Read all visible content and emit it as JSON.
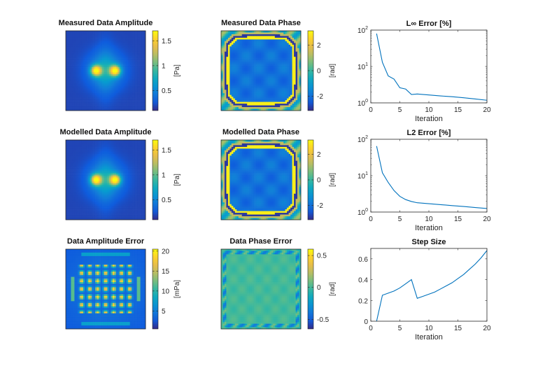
{
  "figure": {
    "background": "#ffffff"
  },
  "chart_data": [
    {
      "id": "p1",
      "type": "heatmap",
      "title": "Measured Data Amplitude",
      "pattern": "amplitude",
      "colorbar": {
        "label": "[Pa]",
        "ticks": [
          "0.5",
          "1",
          "1.5"
        ],
        "range": [
          0.1,
          1.7
        ]
      }
    },
    {
      "id": "p2",
      "type": "heatmap",
      "title": "Measured Data Phase",
      "pattern": "phase",
      "colorbar": {
        "label": "[rad]",
        "ticks": [
          "-2",
          "0",
          "2"
        ],
        "range": [
          -3.14,
          3.14
        ]
      }
    },
    {
      "id": "p3",
      "type": "line",
      "title": "L∞ Error [%]",
      "xlabel": "Iteration",
      "yscale": "log",
      "xlim": [
        0,
        20
      ],
      "ylim": [
        1,
        100
      ],
      "xticks": [
        "0",
        "5",
        "10",
        "15",
        "20"
      ],
      "yticks": [
        {
          "base": "10",
          "exp": "0"
        },
        {
          "base": "10",
          "exp": "1"
        },
        {
          "base": "10",
          "exp": "2"
        }
      ],
      "color": "#0072bd",
      "x": [
        1,
        2,
        3,
        4,
        5,
        6,
        7,
        8,
        10,
        12,
        14,
        16,
        18,
        20
      ],
      "y": [
        80,
        13,
        5.5,
        4.5,
        2.6,
        2.4,
        1.7,
        1.75,
        1.65,
        1.55,
        1.48,
        1.38,
        1.28,
        1.18
      ]
    },
    {
      "id": "p4",
      "type": "heatmap",
      "title": "Modelled Data Amplitude",
      "pattern": "amplitude",
      "colorbar": {
        "label": "[Pa]",
        "ticks": [
          "0.5",
          "1",
          "1.5"
        ],
        "range": [
          0.1,
          1.7
        ]
      }
    },
    {
      "id": "p5",
      "type": "heatmap",
      "title": "Modelled Data Phase",
      "pattern": "phase",
      "colorbar": {
        "label": "[rad]",
        "ticks": [
          "-2",
          "0",
          "2"
        ],
        "range": [
          -3.14,
          3.14
        ]
      }
    },
    {
      "id": "p6",
      "type": "line",
      "title": "L2 Error [%]",
      "xlabel": "Iteration",
      "yscale": "log",
      "xlim": [
        0,
        20
      ],
      "ylim": [
        1,
        100
      ],
      "xticks": [
        "0",
        "5",
        "10",
        "15",
        "20"
      ],
      "yticks": [
        {
          "base": "10",
          "exp": "0"
        },
        {
          "base": "10",
          "exp": "1"
        },
        {
          "base": "10",
          "exp": "2"
        }
      ],
      "color": "#0072bd",
      "x": [
        1,
        2,
        3,
        4,
        5,
        6,
        7,
        8,
        10,
        12,
        14,
        16,
        18,
        20
      ],
      "y": [
        65,
        12,
        6.5,
        3.9,
        2.7,
        2.2,
        1.95,
        1.8,
        1.7,
        1.6,
        1.5,
        1.42,
        1.33,
        1.25
      ]
    },
    {
      "id": "p7",
      "type": "heatmap",
      "title": "Data Amplitude Error",
      "pattern": "amp_error",
      "colorbar": {
        "label": "[mPa]",
        "ticks": [
          "5",
          "10",
          "15",
          "20"
        ],
        "range": [
          0.5,
          20.5
        ]
      }
    },
    {
      "id": "p8",
      "type": "heatmap",
      "title": "Data Phase Error",
      "pattern": "phase_error",
      "colorbar": {
        "label": "[rad]",
        "ticks": [
          "-0.5",
          "0",
          "0.5"
        ],
        "range": [
          -0.65,
          0.6
        ]
      }
    },
    {
      "id": "p9",
      "type": "line",
      "title": "Step Size",
      "xlabel": "Iteration",
      "yscale": "linear",
      "xlim": [
        0,
        20
      ],
      "ylim": [
        0,
        0.7
      ],
      "xticks": [
        "0",
        "5",
        "10",
        "15",
        "20"
      ],
      "yticks": [
        {
          "base": "0",
          "exp": ""
        },
        {
          "base": "0.2",
          "exp": ""
        },
        {
          "base": "0.4",
          "exp": ""
        },
        {
          "base": "0.6",
          "exp": ""
        }
      ],
      "color": "#0072bd",
      "x": [
        1,
        2,
        3,
        4,
        5,
        6,
        7,
        8,
        9,
        10,
        11,
        12,
        13,
        14,
        15,
        16,
        17,
        18,
        19,
        20
      ],
      "y": [
        0,
        0.25,
        0.27,
        0.29,
        0.32,
        0.36,
        0.4,
        0.22,
        0.24,
        0.26,
        0.28,
        0.31,
        0.34,
        0.37,
        0.41,
        0.45,
        0.5,
        0.55,
        0.61,
        0.68
      ]
    }
  ]
}
